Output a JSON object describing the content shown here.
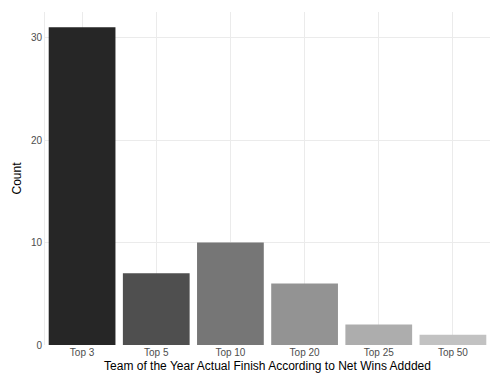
{
  "chart_data": {
    "type": "bar",
    "x_label": "Team of the Year Actual Finish According to Net Wins Addded",
    "y_label": "Count",
    "categories": [
      "Top 3",
      "Top 5",
      "Top 10",
      "Top 20",
      "Top 25",
      "Top 50"
    ],
    "values": [
      31,
      7,
      10,
      6,
      2,
      1
    ],
    "colors": [
      "#262626",
      "#4f4f4f",
      "#767676",
      "#939393",
      "#adadad",
      "#c2c2c2"
    ],
    "ylim": [
      0,
      32.5
    ],
    "yticks": [
      0,
      10,
      20,
      30
    ],
    "grid": true
  }
}
